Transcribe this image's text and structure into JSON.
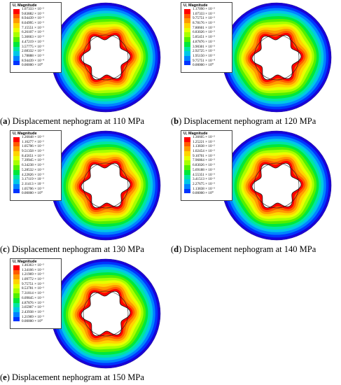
{
  "colors": {
    "scale": [
      "#ff0000",
      "#ff5a00",
      "#ff9a00",
      "#ffd400",
      "#e8ff00",
      "#a8ff00",
      "#52f000",
      "#00e83a",
      "#00e6a0",
      "#00c8e6",
      "#0084ff",
      "#0034ff",
      "#1800d8"
    ],
    "outline": "#1a1a1a"
  },
  "panels": [
    {
      "label": "a",
      "caption": "Displacement nephogram at 110 MPa",
      "legend_title": "U, Magnitude",
      "legend_values": [
        "1.07333 × 10⁻²",
        "9.83882 × 10⁻³",
        "8.94439 × 10⁻³",
        "8.04995 × 10⁻³",
        "7.15551 × 10⁻³",
        "6.26107 × 10⁻³",
        "5.36663 × 10⁻³",
        "4.47219 × 10⁻³",
        "3.57775 × 10⁻³",
        "2.68332 × 10⁻³",
        "1.78888 × 10⁻³",
        "8.94439 × 10⁻⁴",
        "0.00000 × 10⁰"
      ]
    },
    {
      "label": "b",
      "caption": "Displacement nephogram at 120 MPa",
      "legend_title": "U, Magnitude",
      "legend_values": [
        "1.17090 × 10⁻²",
        "1.07333 × 10⁻²",
        "9.75751 × 10⁻³",
        "8.78176 × 10⁻³",
        "7.80601 × 10⁻³",
        "6.83026 × 10⁻³",
        "5.85451 × 10⁻³",
        "4.87876 × 10⁻³",
        "3.90301 × 10⁻³",
        "2.92725 × 10⁻³",
        "1.95150 × 10⁻³",
        "9.75751 × 10⁻⁴",
        "0.00000 × 10⁰"
      ]
    },
    {
      "label": "c",
      "caption": "Displacement nephogram at 130 MPa",
      "legend_title": "U, Magnitude",
      "legend_values": [
        "1.26848 × 10⁻²",
        "1.16277 × 10⁻²",
        "1.05706 × 10⁻²",
        "9.51358 × 10⁻³",
        "8.45651 × 10⁻³",
        "7.39945 × 10⁻³",
        "6.34238 × 10⁻³",
        "5.28532 × 10⁻³",
        "4.22826 × 10⁻³",
        "3.17119 × 10⁻³",
        "2.11413 × 10⁻³",
        "1.05706 × 10⁻³",
        "0.00000 × 10⁰"
      ]
    },
    {
      "label": "d",
      "caption": "Displacement nephogram at 140 MPa",
      "legend_title": "U, Magnitude",
      "legend_values": [
        "1.36605 × 10⁻²",
        "1.25221 × 10⁻²",
        "1.13838 × 10⁻²",
        "1.02454 × 10⁻²",
        "9.10701 × 10⁻³",
        "7.96864 × 10⁻³",
        "6.83026 × 10⁻³",
        "5.69188 × 10⁻³",
        "4.55351 × 10⁻³",
        "3.41513 × 10⁻³",
        "2.27675 × 10⁻³",
        "1.13838 × 10⁻³",
        "0.00000 × 10⁰"
      ]
    },
    {
      "label": "e",
      "caption": "Displacement nephogram at 150 MPa",
      "legend_title": "U, Magnitude",
      "legend_values": [
        "1.46363 × 10⁻²",
        "1.34166 × 10⁻²",
        "1.21969 × 10⁻²",
        "1.09772 × 10⁻²",
        "9.75751 × 10⁻³",
        "8.53781 × 10⁻³",
        "7.31814 × 10⁻³",
        "6.09845 × 10⁻³",
        "4.87876 × 10⁻³",
        "3.65907 × 10⁻³",
        "2.43938 × 10⁻³",
        "1.21969 × 10⁻³",
        "0.00000 × 10⁰"
      ]
    }
  ]
}
